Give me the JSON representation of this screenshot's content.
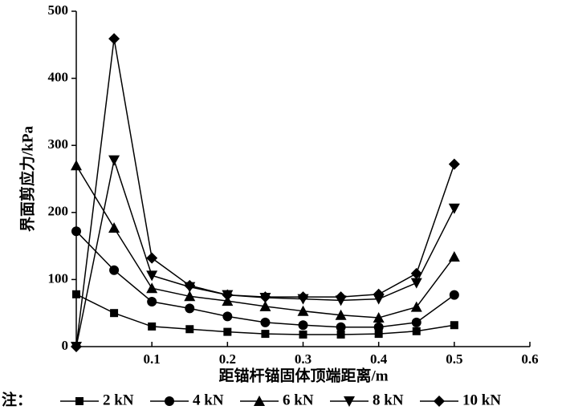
{
  "chart_data": {
    "type": "line",
    "x_label": "距锚杆锚固体顶端距离/m",
    "y_label": "界面剪应力/kPa",
    "legend_title": "注：",
    "x": [
      0,
      0.05,
      0.1,
      0.15,
      0.2,
      0.25,
      0.3,
      0.35,
      0.4,
      0.45,
      0.5
    ],
    "series": [
      {
        "name": "2 kN",
        "color": "#000000",
        "marker": "square",
        "values": [
          78,
          50,
          30,
          26,
          22,
          19,
          18,
          18,
          19,
          23,
          32
        ]
      },
      {
        "name": "4 kN",
        "color": "#000000",
        "marker": "circle",
        "values": [
          172,
          114,
          67,
          57,
          45,
          36,
          32,
          29,
          29,
          36,
          77
        ]
      },
      {
        "name": "6 kN",
        "color": "#000000",
        "marker": "triangle-up",
        "values": [
          270,
          177,
          87,
          75,
          68,
          60,
          53,
          47,
          43,
          59,
          134
        ]
      },
      {
        "name": "8 kN",
        "color": "#000000",
        "marker": "triangle-down",
        "values": [
          0,
          278,
          106,
          89,
          77,
          73,
          71,
          69,
          71,
          95,
          206
        ]
      },
      {
        "name": "10 kN",
        "color": "#000000",
        "marker": "diamond",
        "values": [
          0,
          459,
          132,
          91,
          77,
          74,
          74,
          74,
          78,
          109,
          272
        ]
      }
    ],
    "xlim": [
      0,
      0.6
    ],
    "xticks": [
      0.1,
      0.2,
      0.3,
      0.4,
      0.5,
      0.6
    ],
    "ylim": [
      0,
      500
    ],
    "yticks": [
      0,
      100,
      200,
      300,
      400,
      500
    ],
    "grid": false
  }
}
